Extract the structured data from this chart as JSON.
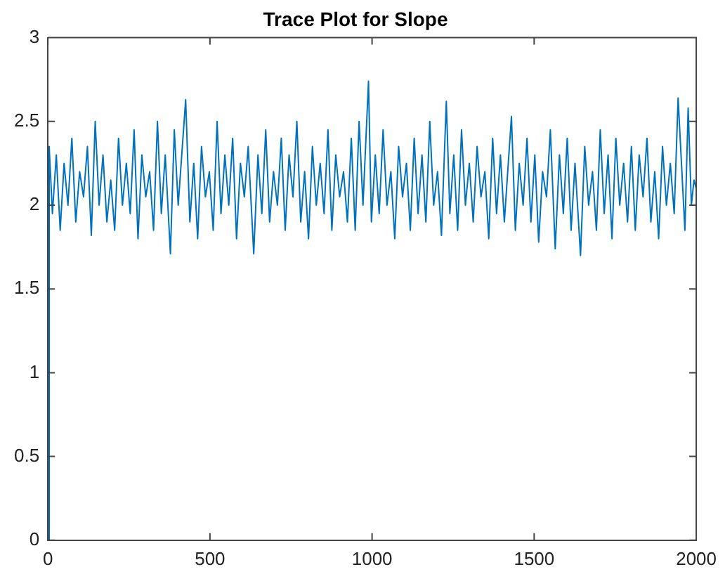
{
  "chart_data": {
    "type": "line",
    "title": "Trace Plot for Slope",
    "x": [
      0,
      4,
      14,
      26,
      38,
      50,
      62,
      74,
      86,
      98,
      110,
      122,
      134,
      146,
      158,
      170,
      182,
      194,
      206,
      218,
      230,
      242,
      254,
      266,
      278,
      290,
      302,
      314,
      326,
      338,
      350,
      362,
      378,
      390,
      402,
      425,
      438,
      450,
      462,
      474,
      486,
      498,
      510,
      522,
      534,
      546,
      558,
      570,
      582,
      594,
      606,
      618,
      635,
      648,
      660,
      672,
      684,
      696,
      708,
      720,
      732,
      744,
      756,
      768,
      780,
      792,
      804,
      816,
      828,
      840,
      852,
      864,
      876,
      888,
      900,
      912,
      924,
      936,
      948,
      960,
      972,
      989,
      998,
      1010,
      1022,
      1034,
      1046,
      1058,
      1070,
      1082,
      1094,
      1106,
      1118,
      1130,
      1142,
      1154,
      1166,
      1178,
      1190,
      1202,
      1214,
      1229,
      1240,
      1252,
      1264,
      1276,
      1288,
      1300,
      1312,
      1324,
      1336,
      1348,
      1360,
      1372,
      1384,
      1396,
      1408,
      1430,
      1442,
      1454,
      1466,
      1478,
      1490,
      1502,
      1514,
      1526,
      1538,
      1550,
      1565,
      1578,
      1590,
      1602,
      1614,
      1626,
      1643,
      1656,
      1668,
      1680,
      1692,
      1704,
      1716,
      1728,
      1740,
      1752,
      1764,
      1776,
      1788,
      1800,
      1812,
      1824,
      1836,
      1848,
      1860,
      1872,
      1884,
      1896,
      1908,
      1920,
      1932,
      1944,
      1965,
      1975,
      1985,
      1993,
      2000
    ],
    "values": [
      0,
      2.35,
      1.95,
      2.3,
      1.85,
      2.25,
      2.0,
      2.4,
      1.9,
      2.2,
      2.05,
      2.35,
      1.82,
      2.5,
      2.0,
      2.3,
      1.9,
      2.15,
      1.85,
      2.4,
      2.0,
      2.25,
      1.95,
      2.45,
      1.8,
      2.3,
      2.05,
      2.2,
      1.85,
      2.5,
      1.95,
      2.3,
      1.71,
      2.45,
      2.0,
      2.63,
      1.9,
      2.25,
      1.8,
      2.35,
      2.05,
      2.2,
      1.85,
      2.5,
      1.95,
      2.3,
      2.0,
      2.4,
      1.8,
      2.25,
      2.05,
      2.35,
      1.71,
      2.3,
      1.95,
      2.45,
      1.9,
      2.2,
      2.0,
      2.4,
      1.85,
      2.3,
      2.05,
      2.5,
      1.9,
      2.2,
      1.8,
      2.35,
      2.0,
      2.25,
      1.95,
      2.45,
      1.85,
      2.3,
      2.05,
      2.2,
      1.9,
      2.4,
      1.85,
      2.5,
      2.0,
      2.74,
      1.9,
      2.3,
      1.95,
      2.45,
      2.0,
      2.2,
      1.8,
      2.35,
      2.05,
      2.25,
      1.85,
      2.4,
      1.95,
      2.3,
      1.9,
      2.5,
      2.0,
      2.2,
      1.82,
      2.62,
      1.95,
      2.3,
      1.85,
      2.45,
      2.0,
      2.25,
      1.9,
      2.35,
      2.05,
      2.2,
      1.8,
      2.4,
      1.95,
      2.3,
      1.9,
      2.53,
      1.85,
      2.25,
      2.0,
      2.4,
      1.9,
      2.3,
      1.78,
      2.2,
      2.05,
      2.45,
      1.74,
      2.3,
      1.95,
      2.4,
      1.85,
      2.25,
      1.7,
      2.35,
      2.0,
      2.2,
      1.85,
      2.45,
      1.95,
      2.3,
      1.8,
      2.4,
      2.0,
      2.25,
      1.9,
      2.35,
      1.85,
      2.3,
      2.05,
      2.4,
      1.9,
      2.2,
      1.8,
      2.35,
      2.0,
      2.25,
      1.95,
      2.64,
      1.85,
      2.58,
      2.0,
      2.15,
      2.1
    ],
    "color": "#0072bd",
    "xlim": [
      0,
      2000
    ],
    "ylim": [
      0,
      3
    ],
    "xticks": [
      0,
      500,
      1000,
      1500,
      2000
    ],
    "yticks": [
      0,
      0.5,
      1,
      1.5,
      2,
      2.5,
      3
    ],
    "grid": false,
    "legend": false
  }
}
